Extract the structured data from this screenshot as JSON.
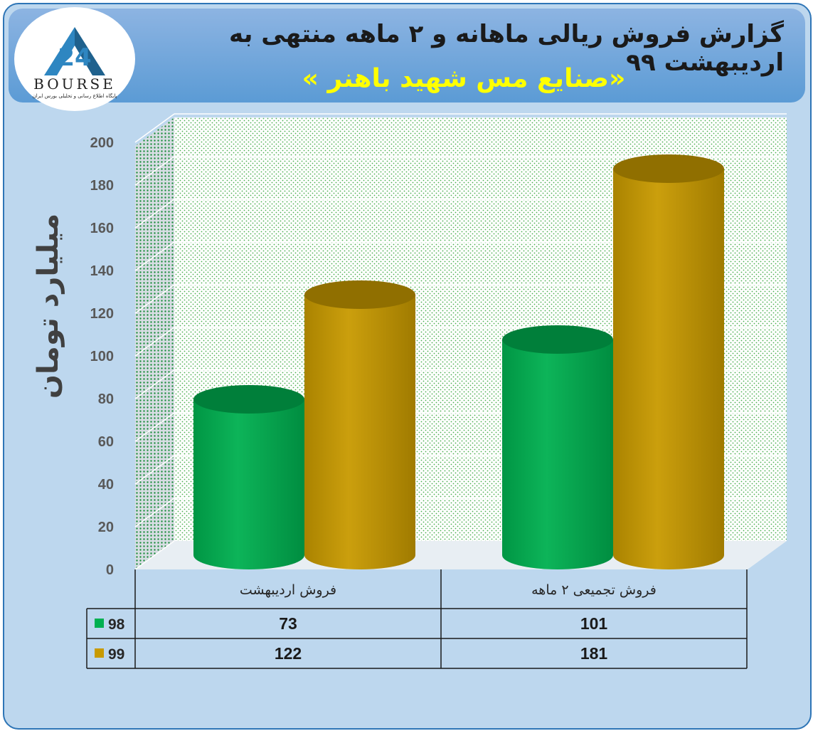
{
  "title": "گزارش فروش ریالی ماهانه و ۲ ماهه منتهی به اردیبهشت ۹۹",
  "subtitle": "«صنایع مس شهید باهنر »",
  "logo": {
    "brand": "BOURSE",
    "number": "24",
    "tagline": "پایگاه اطلاع رسانی و تحلیلی بورس ایران"
  },
  "colors": {
    "series_98": "#00b050",
    "series_99": "#c89a00",
    "background": "#bdd7ee",
    "header": "#5b9bd5",
    "subtitle": "#ffff00"
  },
  "chart_data": {
    "type": "bar",
    "ylabel": "میلیارد تومان",
    "ylim": [
      0,
      200
    ],
    "yticks": [
      0,
      20,
      40,
      60,
      80,
      100,
      120,
      140,
      160,
      180,
      200
    ],
    "categories": [
      "فروش اردیبهشت",
      "فروش تجمیعی ۲ ماهه"
    ],
    "series": [
      {
        "name": "98",
        "values": [
          73,
          101
        ]
      },
      {
        "name": "99",
        "values": [
          122,
          181
        ]
      }
    ],
    "grid": true,
    "legend": "data-table"
  }
}
